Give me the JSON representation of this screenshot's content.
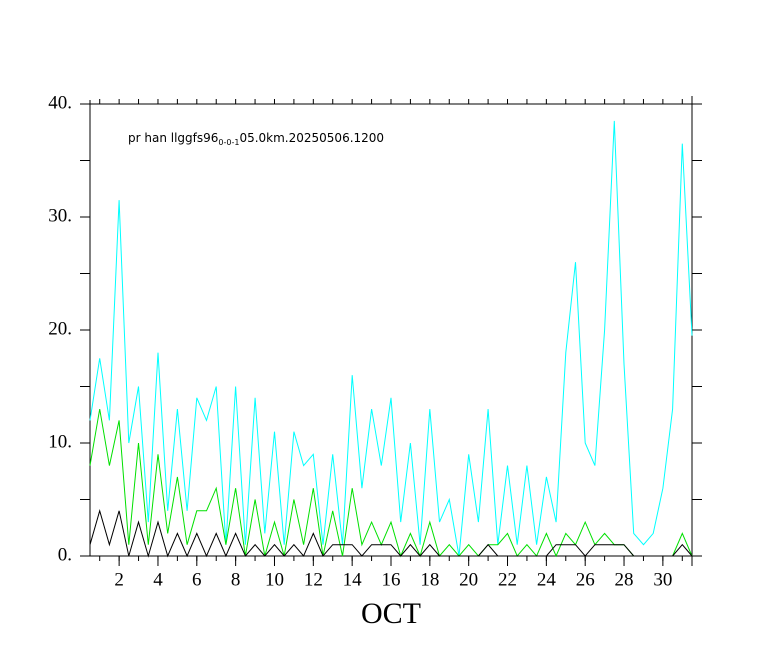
{
  "chart_data": {
    "type": "line",
    "annotation": {
      "text": "pr han llggfs96",
      "sub": "0-0-1",
      "rest": "05.0km.20250506.1200"
    },
    "xlabel": "OCT",
    "x": [
      0.5,
      1,
      1.5,
      2,
      2.5,
      3,
      3.5,
      4,
      4.5,
      5,
      5.5,
      6,
      6.5,
      7,
      7.5,
      8,
      8.5,
      9,
      9.5,
      10,
      10.5,
      11,
      11.5,
      12,
      12.5,
      13,
      13.5,
      14,
      14.5,
      15,
      15.5,
      16,
      16.5,
      17,
      17.5,
      18,
      18.5,
      19,
      19.5,
      20,
      20.5,
      21,
      21.5,
      22,
      22.5,
      23,
      23.5,
      24,
      24.5,
      25,
      25.5,
      26,
      26.5,
      27,
      27.5,
      28,
      28.5,
      29,
      29.5,
      30,
      30.5,
      31,
      31.5
    ],
    "series": [
      {
        "color": "#00ffff",
        "values": [
          12,
          17.5,
          12,
          31.5,
          10,
          15,
          3,
          18,
          4,
          13,
          4,
          14,
          12,
          15,
          1,
          15,
          1,
          14,
          2,
          11,
          1,
          11,
          8,
          9,
          1,
          9,
          1,
          16,
          6,
          13,
          8,
          14,
          3,
          10,
          1,
          13,
          3,
          5,
          0,
          9,
          3,
          13,
          1,
          8,
          1,
          8,
          1,
          7,
          3,
          18,
          26,
          10,
          8,
          20,
          38.5,
          17,
          2,
          1,
          2,
          6,
          13,
          36.5,
          19.5
        ]
      },
      {
        "color": "#00e000",
        "values": [
          8,
          13,
          8,
          12,
          1,
          10,
          1,
          9,
          2,
          7,
          1,
          4,
          4,
          6,
          1,
          6,
          0,
          5,
          0,
          3,
          0,
          5,
          1,
          6,
          0,
          4,
          0,
          6,
          1,
          3,
          1,
          3,
          0,
          2,
          0,
          3,
          0,
          1,
          0,
          1,
          0,
          1,
          1,
          2,
          0,
          1,
          0,
          2,
          0,
          2,
          1,
          3,
          1,
          2,
          1,
          1,
          0,
          0,
          0,
          0,
          0,
          2,
          0
        ]
      },
      {
        "color": "#000000",
        "values": [
          1,
          4,
          1,
          4,
          0,
          3,
          0,
          3,
          0,
          2,
          0,
          2,
          0,
          2,
          0,
          2,
          0,
          1,
          0,
          1,
          0,
          1,
          0,
          2,
          0,
          1,
          1,
          1,
          0,
          1,
          1,
          1,
          0,
          1,
          0,
          1,
          0,
          0,
          0,
          0,
          0,
          1,
          0,
          0,
          0,
          0,
          0,
          0,
          1,
          1,
          1,
          0,
          1,
          1,
          1,
          1,
          0,
          0,
          0,
          0,
          0,
          1,
          0
        ]
      }
    ],
    "xlim": [
      0.5,
      31.5
    ],
    "xticks": [
      2,
      4,
      6,
      8,
      10,
      12,
      14,
      16,
      18,
      20,
      22,
      24,
      26,
      28,
      30
    ],
    "ylim": [
      0,
      40
    ],
    "yticks": [
      {
        "value": 0,
        "label": "0."
      },
      {
        "value": 10,
        "label": "10."
      },
      {
        "value": 20,
        "label": "20."
      },
      {
        "value": 30,
        "label": "30."
      },
      {
        "value": 40,
        "label": "40."
      }
    ]
  }
}
